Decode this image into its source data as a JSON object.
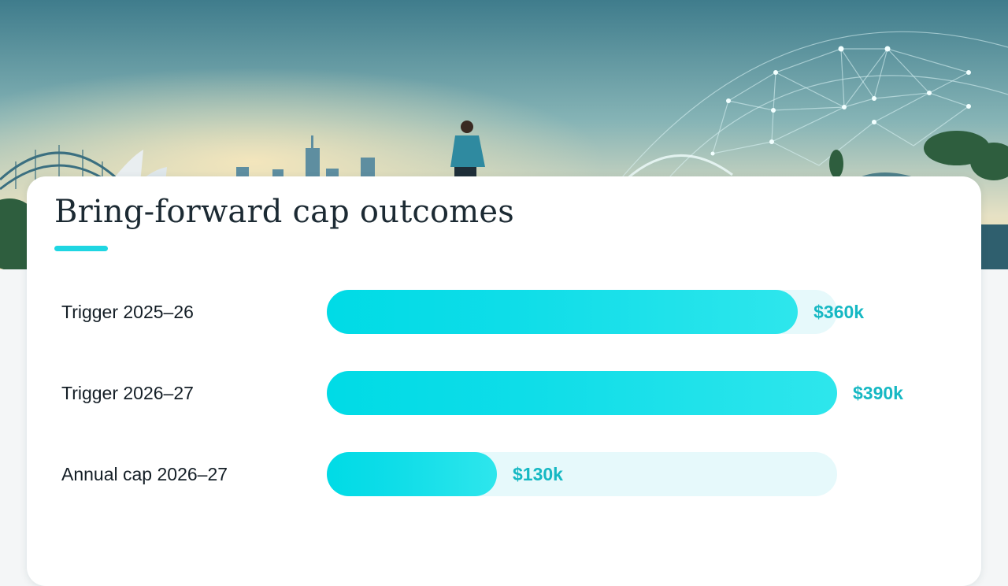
{
  "chart_data": {
    "type": "bar",
    "orientation": "horizontal",
    "title": "Bring-forward cap outcomes",
    "categories": [
      "Trigger 2025–26",
      "Trigger 2026–27",
      "Annual cap 2026–27"
    ],
    "values": [
      360,
      390,
      130
    ],
    "value_labels": [
      "$360k",
      "$390k",
      "$130k"
    ],
    "xlim": [
      0,
      390
    ],
    "grid": false,
    "legend": "none"
  },
  "colors": {
    "accent": "#1fd6e2",
    "bar_fill": "#00dbe6",
    "bar_track": "#e6f9fb",
    "value_text": "#16b8c3",
    "label_text": "#141e26"
  }
}
